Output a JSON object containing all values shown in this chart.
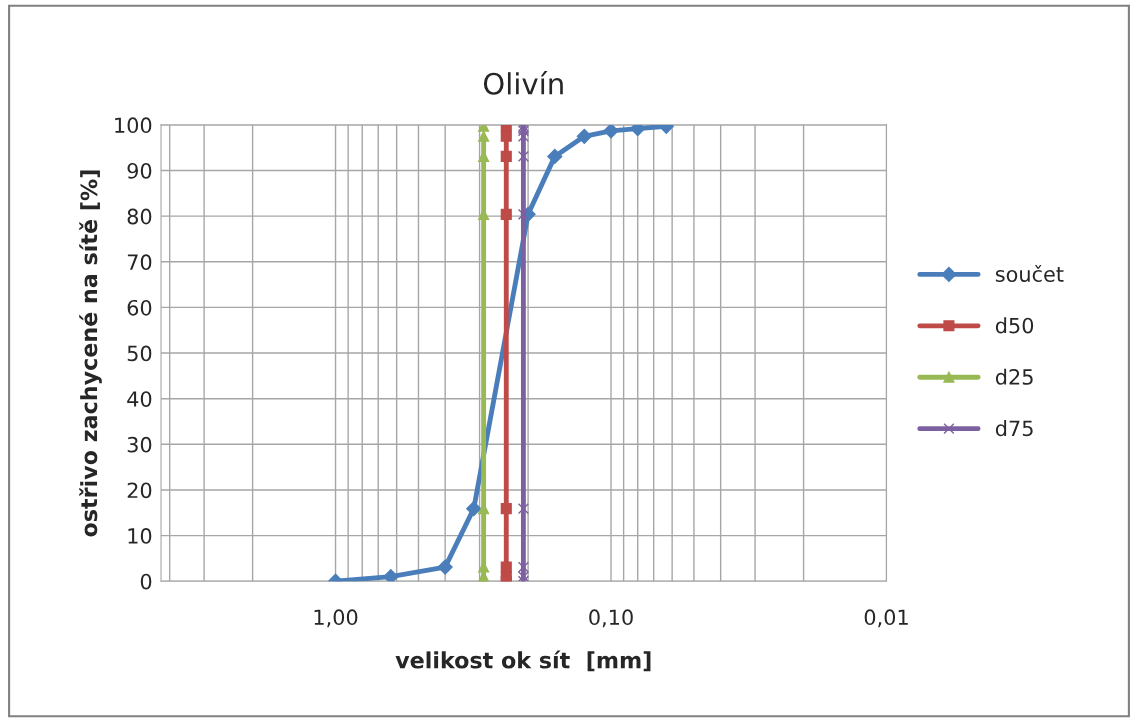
{
  "chart_data": {
    "type": "line",
    "title": "Olivín",
    "xlabel": "velikost ok sít  [mm]",
    "ylabel": "ostřivo zachycené na sítě [%]",
    "log": "x",
    "xlim": [
      4.3,
      0.01
    ],
    "ylim": [
      0,
      100
    ],
    "xticks": [
      {
        "value": 4,
        "label": null
      },
      {
        "value": 3,
        "label": null
      },
      {
        "value": 2,
        "label": null
      },
      {
        "value": 1,
        "label": "1,00"
      },
      {
        "value": 0.9,
        "label": null
      },
      {
        "value": 0.8,
        "label": null
      },
      {
        "value": 0.7,
        "label": null
      },
      {
        "value": 0.6,
        "label": null
      },
      {
        "value": 0.5,
        "label": null
      },
      {
        "value": 0.4,
        "label": null
      },
      {
        "value": 0.3,
        "label": null
      },
      {
        "value": 0.2,
        "label": null
      },
      {
        "value": 0.1,
        "label": "0,10"
      },
      {
        "value": 0.09,
        "label": null
      },
      {
        "value": 0.08,
        "label": null
      },
      {
        "value": 0.07,
        "label": null
      },
      {
        "value": 0.06,
        "label": null
      },
      {
        "value": 0.05,
        "label": null
      },
      {
        "value": 0.04,
        "label": null
      },
      {
        "value": 0.03,
        "label": null
      },
      {
        "value": 0.02,
        "label": null
      },
      {
        "value": 0.01,
        "label": "0,01"
      }
    ],
    "yticks": [
      0,
      10,
      20,
      30,
      40,
      50,
      60,
      70,
      80,
      90,
      100
    ],
    "grid": true,
    "legend": "right",
    "series": [
      {
        "name": "součet",
        "color": "#4a7ebb",
        "marker": "diamond",
        "x": [
          1.0,
          0.63,
          0.4,
          0.315,
          0.2,
          0.16,
          0.125,
          0.1,
          0.08,
          0.063
        ],
        "values": [
          0,
          1,
          3.1,
          15.9,
          80.4,
          93.1,
          97.5,
          98.7,
          99.2,
          99.7
        ]
      },
      {
        "name": "d50",
        "color": "#be4b48",
        "marker": "square",
        "x": [
          0.24,
          0.24,
          0.24,
          0.24,
          0.24,
          0.24,
          0.24,
          null,
          null,
          0.24
        ],
        "values": [
          0,
          1,
          3.1,
          15.9,
          80.4,
          93.1,
          97.5,
          null,
          null,
          99.7
        ]
      },
      {
        "name": "d25",
        "color": "#98b954",
        "marker": "triangle",
        "x": [
          0.29,
          0.29,
          0.29,
          0.29,
          0.29,
          0.29,
          0.29,
          null,
          null,
          0.29
        ],
        "values": [
          0,
          1,
          3.1,
          15.9,
          80.4,
          93.1,
          97.5,
          null,
          null,
          99.7
        ]
      },
      {
        "name": "d75",
        "color": "#7d60a0",
        "marker": "cross",
        "x": [
          0.208,
          0.208,
          0.208,
          0.208,
          0.208,
          0.208,
          0.208,
          0.208,
          0.208,
          0.208
        ],
        "values": [
          0,
          1,
          3.1,
          15.9,
          80.4,
          93.1,
          97.5,
          98.7,
          99.2,
          99.7
        ]
      }
    ]
  }
}
